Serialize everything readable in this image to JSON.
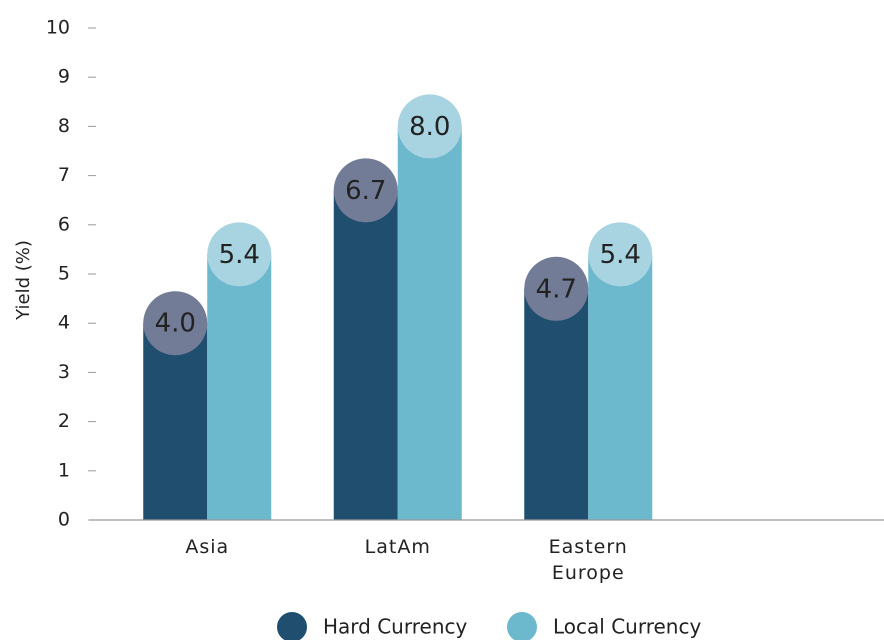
{
  "chart_data": {
    "type": "bar",
    "y_label": "Yield (%)",
    "categories": [
      "Asia",
      "LatAm",
      "Eastern Europe"
    ],
    "series": [
      {
        "name": "Hard Currency",
        "color": "#1f4e6e",
        "bubble_color": "#737c96",
        "values": [
          4.0,
          6.7,
          4.7
        ],
        "value_labels": [
          "4.0",
          "6.7",
          "4.7"
        ]
      },
      {
        "name": "Local Currency",
        "color": "#6cb8cc",
        "bubble_color": "#a8d4e1",
        "values": [
          5.4,
          8.0,
          5.4
        ],
        "value_labels": [
          "5.4",
          "8.0",
          "5.4"
        ]
      }
    ],
    "ylim": [
      0,
      10
    ],
    "yticks": [
      0,
      1,
      2,
      3,
      4,
      5,
      6,
      7,
      8,
      9,
      10
    ],
    "grid": false,
    "legend": "bottom"
  }
}
